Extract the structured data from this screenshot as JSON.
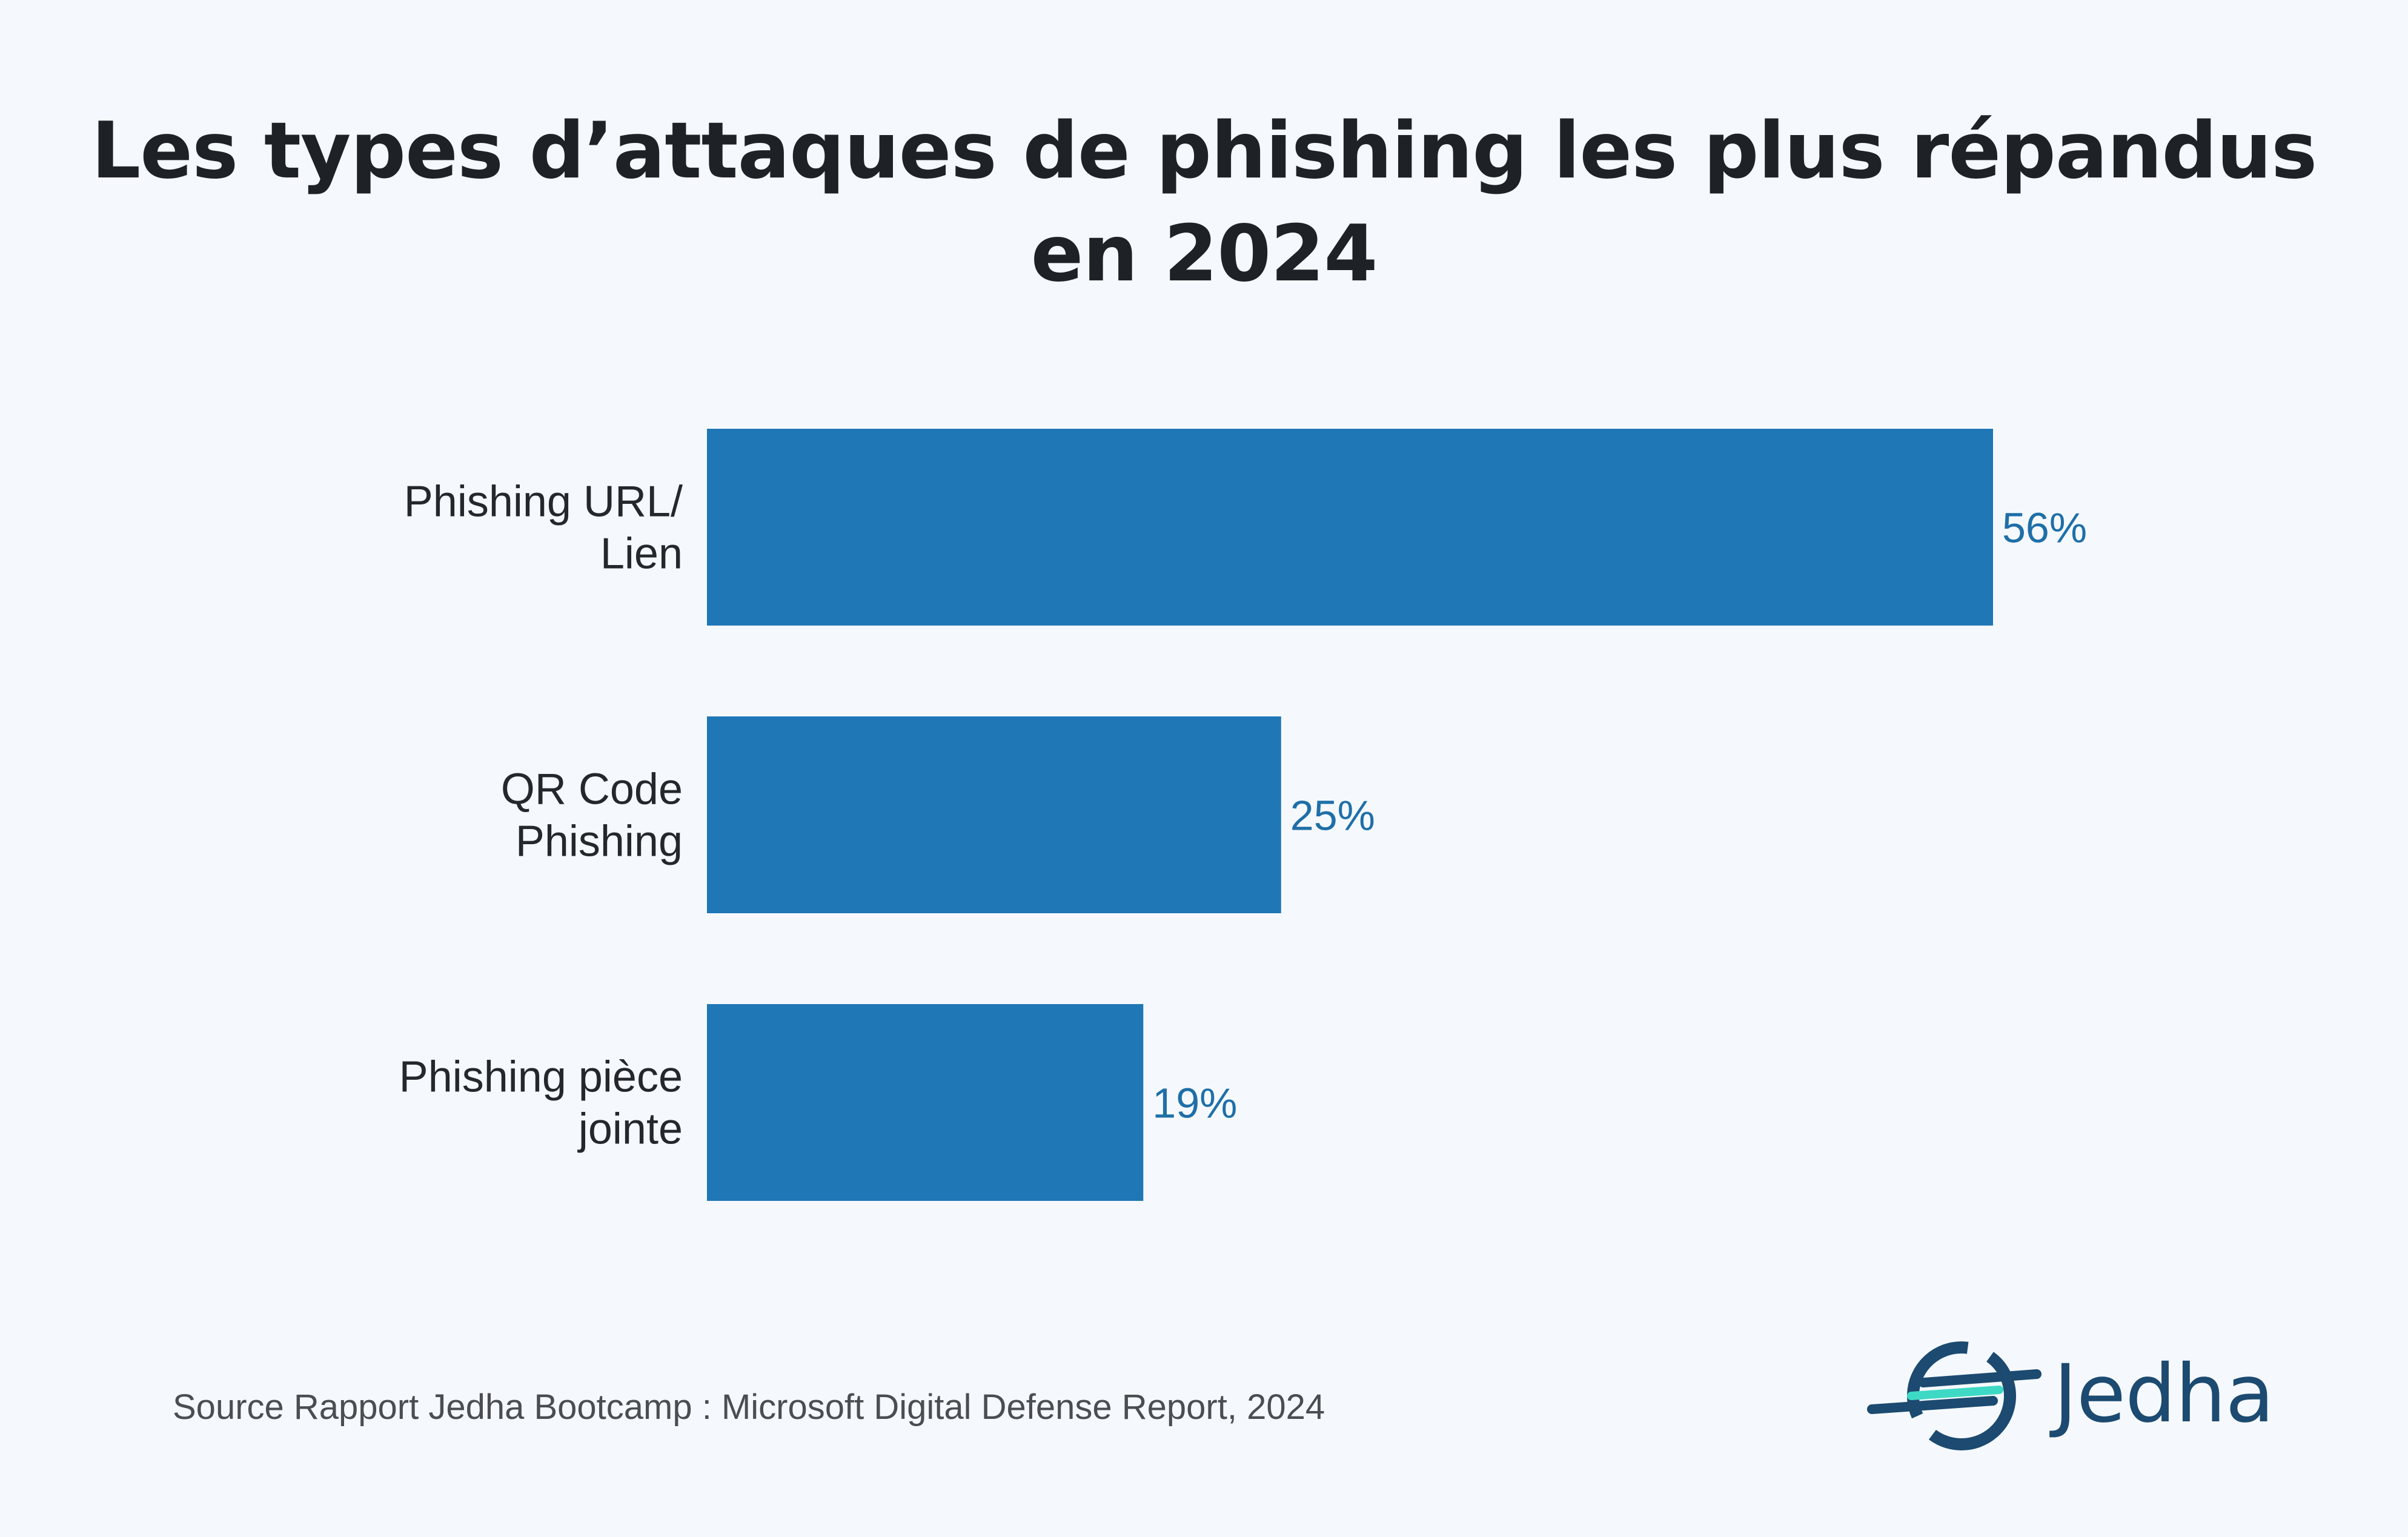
{
  "chart_data": {
    "type": "bar",
    "orientation": "horizontal",
    "title": "Les types d’attaques de phishing les plus répandus en 2024",
    "title_lines": [
      "Les types d’attaques de phishing les plus répandus",
      "en 2024"
    ],
    "categories": [
      "Phishing URL/ Lien",
      "QR Code Phishing",
      "Phishing pièce jointe"
    ],
    "category_lines": [
      [
        "Phishing URL/",
        "Lien"
      ],
      [
        "QR Code",
        "Phishing"
      ],
      [
        "Phishing pièce",
        "jointe"
      ]
    ],
    "values": [
      56,
      25,
      19
    ],
    "value_labels": [
      "56%",
      "25%",
      "19%"
    ],
    "unit": "%",
    "xlim": [
      0,
      56
    ],
    "grid": false,
    "xlabel": "",
    "ylabel": ""
  },
  "source": "Source Rapport Jedha Bootcamp : Microsoft Digital Defense Report, 2024",
  "logo": {
    "text": "Jedha",
    "icon": "jedha-logo-icon"
  },
  "colors": {
    "background": "#f5f9fd",
    "bar": "#2077b5",
    "value_label": "#1f6fa8",
    "title": "#1e2227",
    "logo_dark": "#1c4a70",
    "logo_accent": "#3ed9c4"
  }
}
